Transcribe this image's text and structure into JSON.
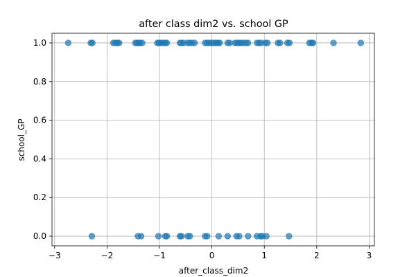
{
  "chart_data": {
    "type": "scatter",
    "title": "after class dim2 vs. school GP",
    "xlabel": "after_class_dim2",
    "ylabel": "school_GP",
    "xlim": [
      -3.05,
      3.1
    ],
    "ylim": [
      -0.05,
      1.05
    ],
    "xticks": [
      -3,
      -2,
      -1,
      0,
      1,
      2,
      3
    ],
    "yticks": [
      0.0,
      0.2,
      0.4,
      0.6,
      0.8,
      1.0
    ],
    "xtick_labels": [
      "−3",
      "−2",
      "−1",
      "0",
      "1",
      "2",
      "3"
    ],
    "ytick_labels": [
      "0.0",
      "0.2",
      "0.4",
      "0.6",
      "0.8",
      "1.0"
    ],
    "grid": true,
    "marker_color": "#1f77b4",
    "marker_alpha": 0.7,
    "series": [
      {
        "x": [
          -2.74,
          -2.31,
          -2.28,
          -1.88,
          -1.84,
          -1.8,
          -1.77,
          -1.46,
          -1.43,
          -1.4,
          -1.37,
          -1.33,
          -1.04,
          -1.01,
          -0.97,
          -0.93,
          -0.89,
          -0.86,
          -0.61,
          -0.58,
          -0.54,
          -0.46,
          -0.42,
          -0.38,
          -0.33,
          -0.13,
          -0.09,
          -0.05,
          -0.01,
          0.04,
          0.08,
          0.12,
          0.15,
          0.3,
          0.34,
          0.44,
          0.48,
          0.52,
          0.55,
          0.6,
          0.65,
          0.69,
          0.86,
          0.9,
          0.94,
          1.02,
          1.06,
          1.26,
          1.3,
          1.44,
          1.48,
          1.86,
          1.9,
          1.93,
          2.32,
          2.84
        ],
        "y": [
          1,
          1,
          1,
          1,
          1,
          1,
          1,
          1,
          1,
          1,
          1,
          1,
          1,
          1,
          1,
          1,
          1,
          1,
          1,
          1,
          1,
          1,
          1,
          1,
          1,
          1,
          1,
          1,
          1,
          1,
          1,
          1,
          1,
          1,
          1,
          1,
          1,
          1,
          1,
          1,
          1,
          1,
          1,
          1,
          1,
          1,
          1,
          1,
          1,
          1,
          1,
          1,
          1,
          1,
          1,
          1
        ]
      },
      {
        "x": [
          -2.29,
          -1.41,
          -1.35,
          -1.02,
          -0.89,
          -0.86,
          -0.61,
          -0.58,
          -0.46,
          -0.42,
          -0.13,
          -0.09,
          0.13,
          0.3,
          0.47,
          0.52,
          0.69,
          0.86,
          0.93,
          0.96,
          1.04,
          1.47
        ],
        "y": [
          0,
          0,
          0,
          0,
          0,
          0,
          0,
          0,
          0,
          0,
          0,
          0,
          0,
          0,
          0,
          0,
          0,
          0,
          0,
          0,
          0,
          0
        ]
      }
    ]
  }
}
